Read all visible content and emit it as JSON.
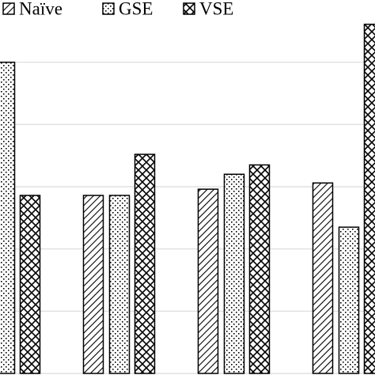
{
  "chart_data": {
    "type": "bar",
    "categories": [
      null,
      null,
      null,
      null
    ],
    "series": [
      {
        "name": "Naïve",
        "color": "#000000",
        "pattern": "diagonal",
        "values": [
          null,
          2.86,
          2.96,
          3.06
        ]
      },
      {
        "name": "GSE",
        "color": "#000000",
        "pattern": "dots",
        "values": [
          5.0,
          2.86,
          3.2,
          2.35
        ]
      },
      {
        "name": "VSE",
        "color": "#000000",
        "pattern": "crosshatch",
        "values": [
          2.86,
          3.52,
          3.35,
          5.61
        ]
      }
    ],
    "ylim": [
      0,
      6
    ],
    "yticks": [
      0,
      1,
      2,
      3,
      4,
      5
    ],
    "grid": true,
    "legend": "top"
  }
}
